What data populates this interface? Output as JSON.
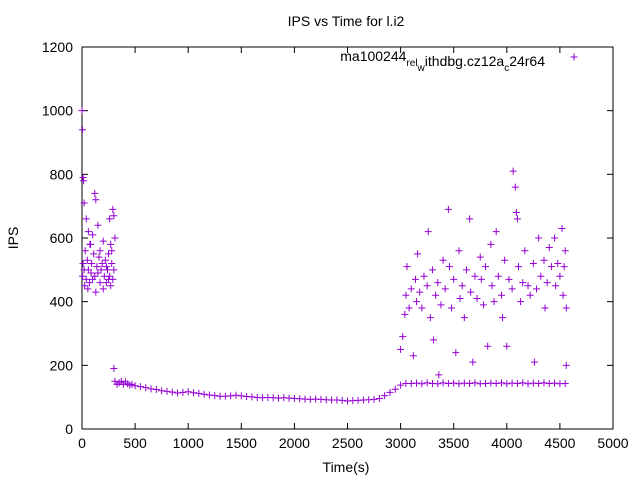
{
  "chart_data": {
    "type": "scatter",
    "title": "IPS vs Time for l.i2",
    "xlabel": "Time(s)",
    "ylabel": "IPS",
    "xlim": [
      0,
      5000
    ],
    "ylim": [
      0,
      1200
    ],
    "x_ticks": [
      0,
      500,
      1000,
      1500,
      2000,
      2500,
      3000,
      3500,
      4000,
      4500,
      5000
    ],
    "y_ticks": [
      0,
      200,
      400,
      600,
      800,
      1000,
      1200
    ],
    "grid": false,
    "legend_position": "top-right",
    "series": [
      {
        "name": "ma100244_rel_withdbg.cz12a_c24r64",
        "legend_display": {
          "p1": "ma100244",
          "s1": "rel",
          "p2": "",
          "s2": "w",
          "p3": "ithdbg.cz12a",
          "s3": "c",
          "p4": "24r64"
        },
        "color": "#9400d3",
        "marker": "+",
        "points": [
          [
            0,
            1000
          ],
          [
            5,
            940
          ],
          [
            10,
            790
          ],
          [
            15,
            780
          ],
          [
            20,
            710
          ],
          [
            40,
            660
          ],
          [
            60,
            620
          ],
          [
            80,
            580
          ],
          [
            100,
            610
          ],
          [
            120,
            740
          ],
          [
            130,
            720
          ],
          [
            150,
            640
          ],
          [
            170,
            560
          ],
          [
            200,
            590
          ],
          [
            230,
            510
          ],
          [
            250,
            470
          ],
          [
            260,
            660
          ],
          [
            270,
            580
          ],
          [
            280,
            560
          ],
          [
            290,
            690
          ],
          [
            300,
            670
          ],
          [
            310,
            600
          ],
          [
            5,
            480
          ],
          [
            10,
            520
          ],
          [
            20,
            500
          ],
          [
            25,
            450
          ],
          [
            30,
            560
          ],
          [
            40,
            470
          ],
          [
            50,
            530
          ],
          [
            55,
            440
          ],
          [
            60,
            500
          ],
          [
            70,
            460
          ],
          [
            75,
            580
          ],
          [
            85,
            490
          ],
          [
            90,
            520
          ],
          [
            100,
            470
          ],
          [
            110,
            550
          ],
          [
            120,
            480
          ],
          [
            130,
            430
          ],
          [
            140,
            510
          ],
          [
            150,
            490
          ],
          [
            160,
            540
          ],
          [
            170,
            460
          ],
          [
            180,
            500
          ],
          [
            190,
            520
          ],
          [
            200,
            440
          ],
          [
            210,
            480
          ],
          [
            220,
            530
          ],
          [
            230,
            460
          ],
          [
            240,
            500
          ],
          [
            250,
            550
          ],
          [
            260,
            480
          ],
          [
            270,
            450
          ],
          [
            280,
            520
          ],
          [
            290,
            470
          ],
          [
            300,
            500
          ],
          [
            300,
            190
          ],
          [
            310,
            150
          ],
          [
            330,
            140
          ],
          [
            350,
            145
          ],
          [
            370,
            150
          ],
          [
            390,
            140
          ],
          [
            410,
            148
          ],
          [
            430,
            142
          ],
          [
            450,
            138
          ],
          [
            470,
            140
          ],
          [
            500,
            136
          ],
          [
            550,
            133
          ],
          [
            600,
            130
          ],
          [
            650,
            126
          ],
          [
            700,
            124
          ],
          [
            750,
            120
          ],
          [
            800,
            118
          ],
          [
            850,
            116
          ],
          [
            900,
            113
          ],
          [
            950,
            115
          ],
          [
            1000,
            117
          ],
          [
            1050,
            114
          ],
          [
            1100,
            112
          ],
          [
            1150,
            109
          ],
          [
            1200,
            107
          ],
          [
            1250,
            105
          ],
          [
            1300,
            103
          ],
          [
            1350,
            103
          ],
          [
            1400,
            104
          ],
          [
            1450,
            106
          ],
          [
            1500,
            104
          ],
          [
            1550,
            102
          ],
          [
            1600,
            101
          ],
          [
            1650,
            99
          ],
          [
            1700,
            98
          ],
          [
            1750,
            99
          ],
          [
            1800,
            98
          ],
          [
            1850,
            97
          ],
          [
            1900,
            98
          ],
          [
            1950,
            97
          ],
          [
            2000,
            96
          ],
          [
            2050,
            95
          ],
          [
            2100,
            94
          ],
          [
            2150,
            93
          ],
          [
            2200,
            94
          ],
          [
            2250,
            93
          ],
          [
            2300,
            92
          ],
          [
            2350,
            91
          ],
          [
            2400,
            91
          ],
          [
            2450,
            90
          ],
          [
            2500,
            88
          ],
          [
            2550,
            89
          ],
          [
            2600,
            90
          ],
          [
            2650,
            91
          ],
          [
            2700,
            92
          ],
          [
            2750,
            93
          ],
          [
            2800,
            96
          ],
          [
            2850,
            105
          ],
          [
            2900,
            115
          ],
          [
            2950,
            125
          ],
          [
            3000,
            138
          ],
          [
            3050,
            143
          ],
          [
            3100,
            143
          ],
          [
            3150,
            144
          ],
          [
            3200,
            142
          ],
          [
            3250,
            145
          ],
          [
            3300,
            143
          ],
          [
            3350,
            142
          ],
          [
            3400,
            145
          ],
          [
            3450,
            143
          ],
          [
            3500,
            144
          ],
          [
            3550,
            142
          ],
          [
            3600,
            144
          ],
          [
            3650,
            143
          ],
          [
            3700,
            145
          ],
          [
            3750,
            142
          ],
          [
            3800,
            143
          ],
          [
            3850,
            144
          ],
          [
            3900,
            143
          ],
          [
            3950,
            145
          ],
          [
            4000,
            142
          ],
          [
            4050,
            144
          ],
          [
            4100,
            143
          ],
          [
            4150,
            145
          ],
          [
            4200,
            142
          ],
          [
            4250,
            144
          ],
          [
            4300,
            143
          ],
          [
            4350,
            145
          ],
          [
            4400,
            143
          ],
          [
            4450,
            144
          ],
          [
            4500,
            142
          ],
          [
            4550,
            143
          ],
          [
            3000,
            250
          ],
          [
            3020,
            290
          ],
          [
            3040,
            360
          ],
          [
            3050,
            420
          ],
          [
            3060,
            510
          ],
          [
            3080,
            380
          ],
          [
            3100,
            440
          ],
          [
            3120,
            230
          ],
          [
            3140,
            470
          ],
          [
            3150,
            400
          ],
          [
            3160,
            550
          ],
          [
            3180,
            430
          ],
          [
            3200,
            380
          ],
          [
            3220,
            480
          ],
          [
            3250,
            450
          ],
          [
            3260,
            620
          ],
          [
            3280,
            350
          ],
          [
            3300,
            500
          ],
          [
            3310,
            280
          ],
          [
            3330,
            420
          ],
          [
            3350,
            460
          ],
          [
            3360,
            170
          ],
          [
            3380,
            390
          ],
          [
            3400,
            530
          ],
          [
            3420,
            440
          ],
          [
            3450,
            690
          ],
          [
            3460,
            510
          ],
          [
            3480,
            380
          ],
          [
            3500,
            470
          ],
          [
            3520,
            240
          ],
          [
            3550,
            560
          ],
          [
            3560,
            410
          ],
          [
            3580,
            450
          ],
          [
            3600,
            350
          ],
          [
            3620,
            500
          ],
          [
            3650,
            660
          ],
          [
            3660,
            430
          ],
          [
            3680,
            210
          ],
          [
            3700,
            480
          ],
          [
            3720,
            410
          ],
          [
            3750,
            540
          ],
          [
            3760,
            470
          ],
          [
            3780,
            390
          ],
          [
            3800,
            510
          ],
          [
            3820,
            260
          ],
          [
            3850,
            580
          ],
          [
            3860,
            450
          ],
          [
            3880,
            400
          ],
          [
            3900,
            620
          ],
          [
            3920,
            480
          ],
          [
            3950,
            420
          ],
          [
            3960,
            350
          ],
          [
            3980,
            530
          ],
          [
            4000,
            260
          ],
          [
            4020,
            470
          ],
          [
            4050,
            440
          ],
          [
            4060,
            810
          ],
          [
            4080,
            760
          ],
          [
            4090,
            680
          ],
          [
            4100,
            660
          ],
          [
            4110,
            510
          ],
          [
            4130,
            400
          ],
          [
            4150,
            460
          ],
          [
            4170,
            560
          ],
          [
            4200,
            450
          ],
          [
            4220,
            420
          ],
          [
            4250,
            520
          ],
          [
            4260,
            210
          ],
          [
            4280,
            440
          ],
          [
            4300,
            600
          ],
          [
            4320,
            480
          ],
          [
            4350,
            530
          ],
          [
            4360,
            380
          ],
          [
            4380,
            460
          ],
          [
            4400,
            570
          ],
          [
            4420,
            510
          ],
          [
            4450,
            600
          ],
          [
            4460,
            450
          ],
          [
            4480,
            520
          ],
          [
            4500,
            480
          ],
          [
            4520,
            630
          ],
          [
            4530,
            420
          ],
          [
            4540,
            510
          ],
          [
            4550,
            560
          ],
          [
            4560,
            380
          ],
          [
            4560,
            200
          ]
        ]
      }
    ]
  }
}
